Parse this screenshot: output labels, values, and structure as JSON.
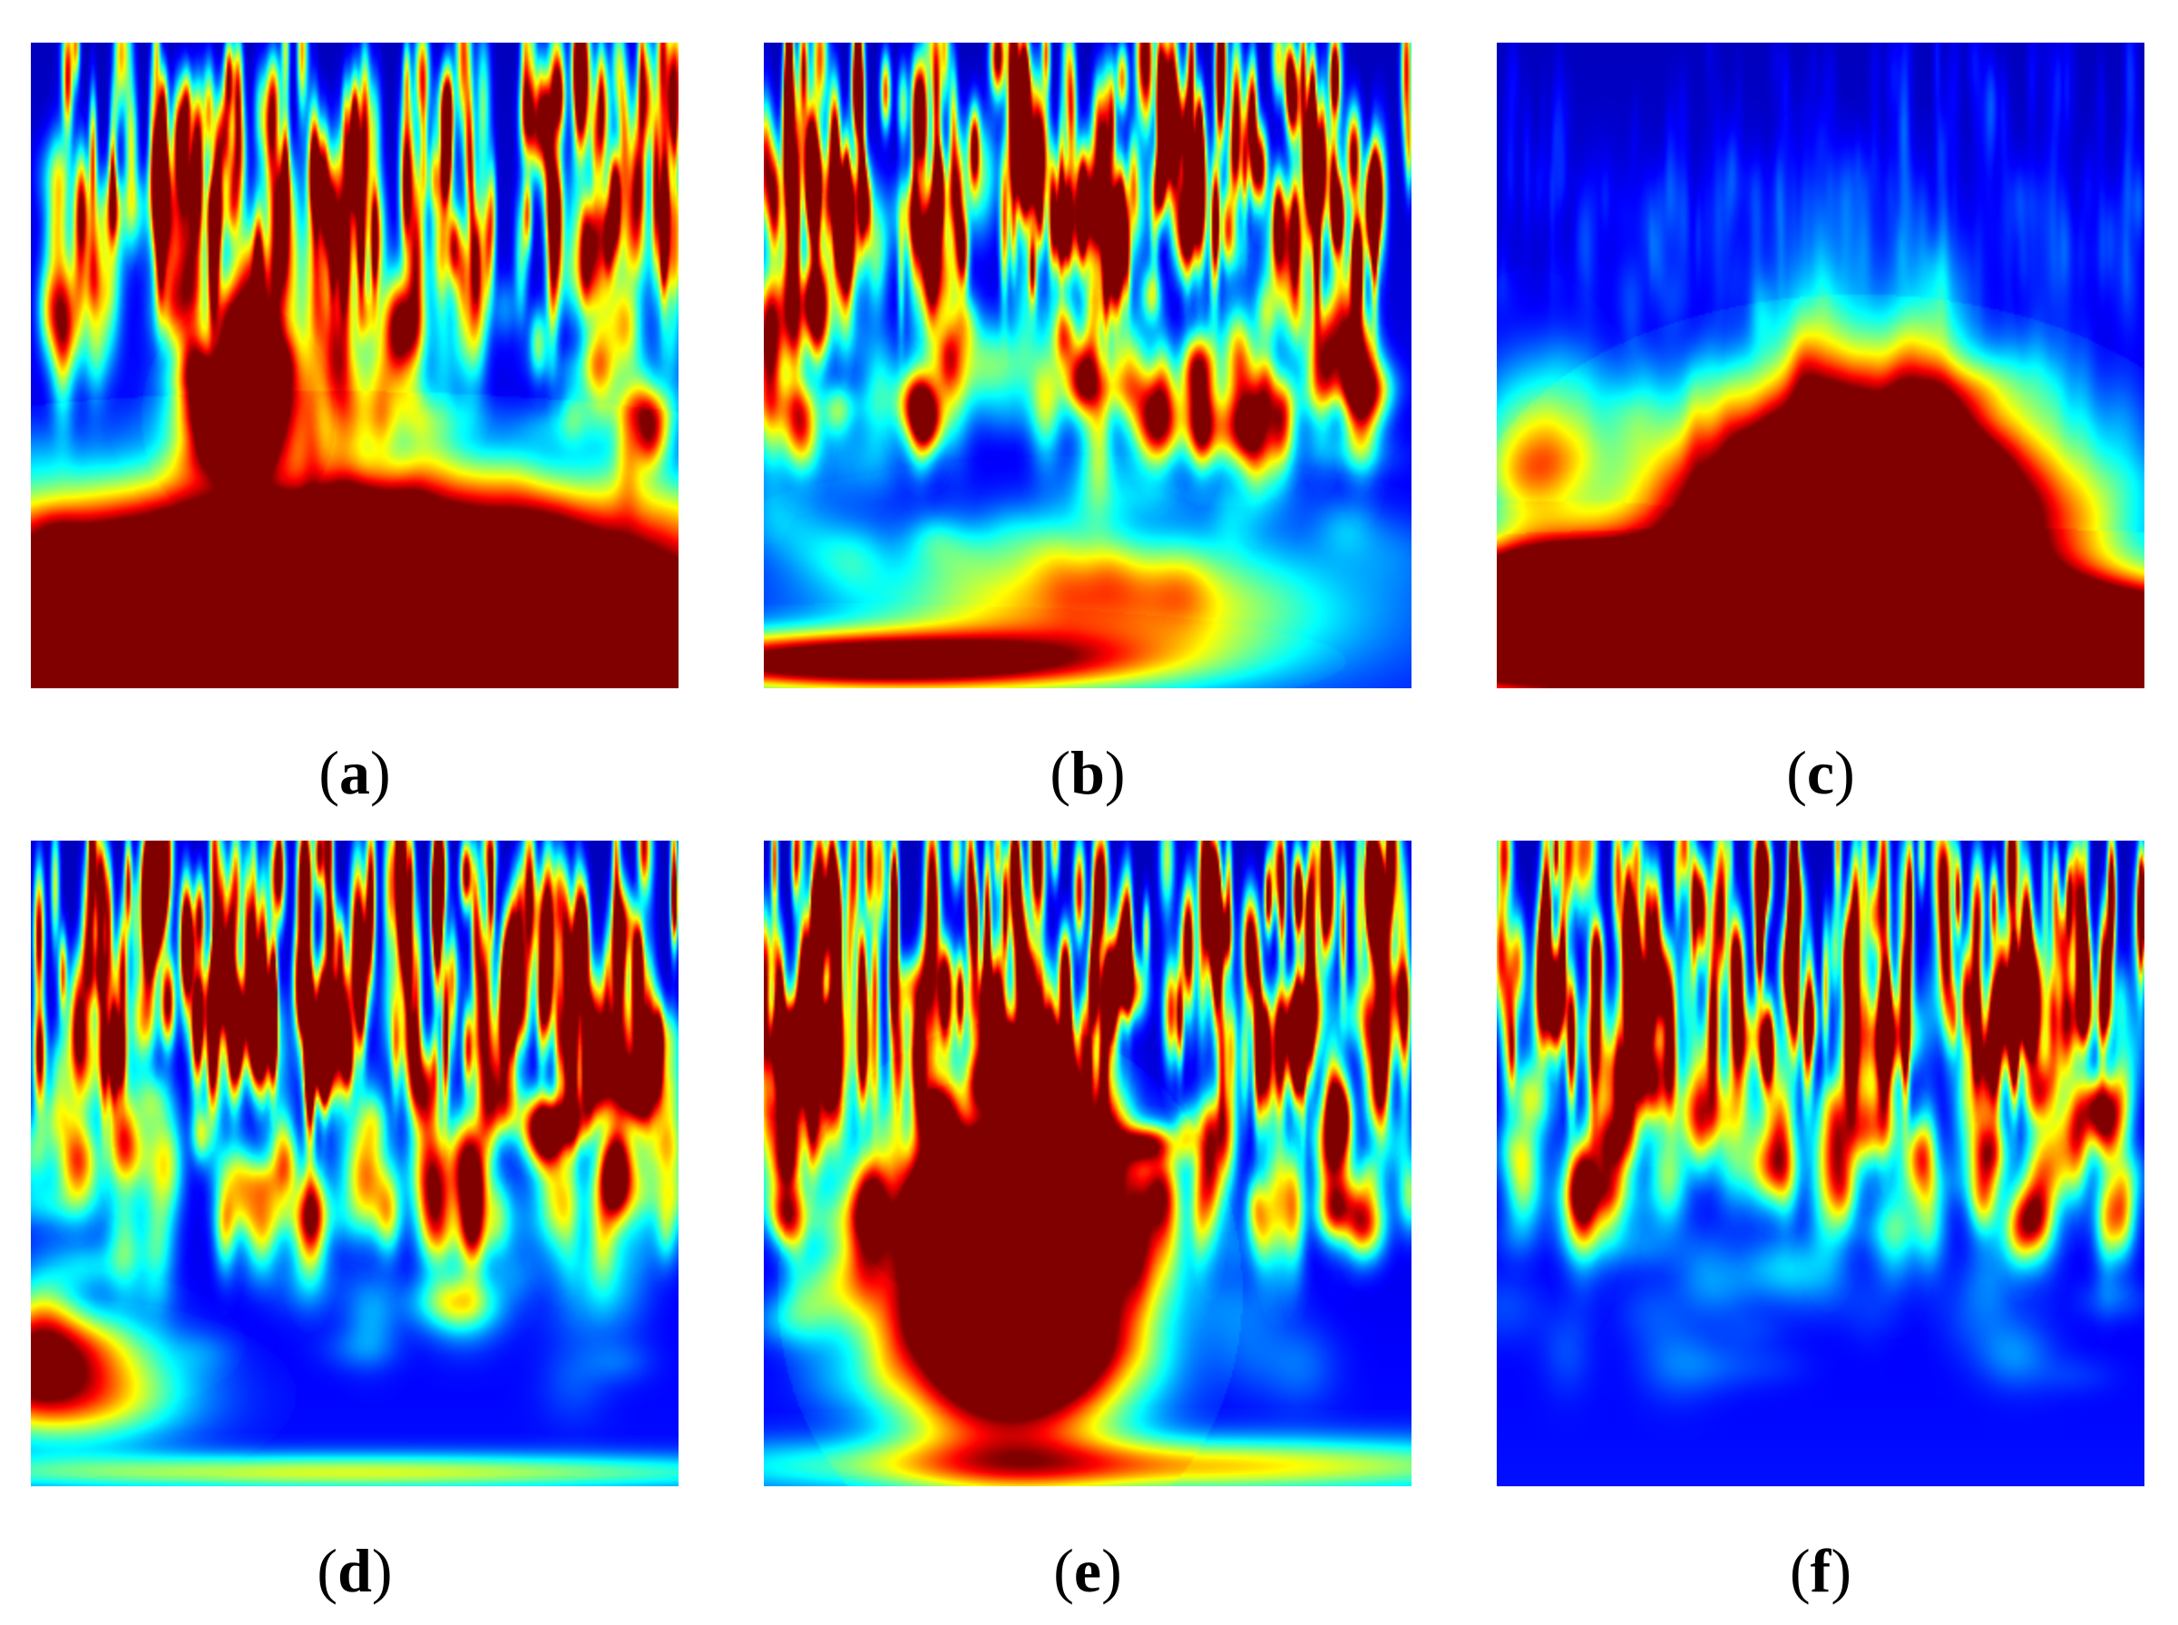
{
  "chart_data": [
    {
      "type": "heatmap",
      "label": "a",
      "seed": 11,
      "noise_top": 0.72,
      "noise_mid": 0.38,
      "noise_low": 0.12,
      "blobs": [
        {
          "cx": 0.46,
          "cy": 0.87,
          "rx": 0.42,
          "ry": 0.11,
          "amp": 2.4
        },
        {
          "cx": 0.32,
          "cy": 0.58,
          "rx": 0.05,
          "ry": 0.06,
          "amp": 1.4
        },
        {
          "cx": 0.4,
          "cy": 0.48,
          "rx": 0.1,
          "ry": 0.12,
          "amp": 0.45
        },
        {
          "cx": 0.5,
          "cy": 0.97,
          "rx": 0.5,
          "ry": 0.03,
          "amp": 0.9
        }
      ]
    },
    {
      "type": "heatmap",
      "label": "b",
      "seed": 23,
      "noise_top": 0.95,
      "noise_mid": 0.45,
      "noise_low": 0.12,
      "blobs": [
        {
          "cx": 0.52,
          "cy": 0.88,
          "rx": 0.25,
          "ry": 0.08,
          "amp": 0.62
        },
        {
          "cx": 0.15,
          "cy": 0.96,
          "rx": 0.25,
          "ry": 0.03,
          "amp": 1.1
        },
        {
          "cx": 0.72,
          "cy": 0.6,
          "rx": 0.05,
          "ry": 0.04,
          "amp": 0.55
        },
        {
          "cx": 0.35,
          "cy": 0.5,
          "rx": 0.06,
          "ry": 0.05,
          "amp": 0.4
        }
      ]
    },
    {
      "type": "heatmap",
      "label": "c",
      "seed": 37,
      "noise_top": 0.05,
      "noise_mid": 0.06,
      "noise_low": 0.08,
      "blobs": [
        {
          "cx": 0.56,
          "cy": 0.75,
          "rx": 0.2,
          "ry": 0.12,
          "amp": 2.4
        },
        {
          "cx": 0.55,
          "cy": 0.93,
          "rx": 0.5,
          "ry": 0.06,
          "amp": 2.5
        },
        {
          "cx": 0.12,
          "cy": 0.86,
          "rx": 0.14,
          "ry": 0.05,
          "amp": 2.0
        },
        {
          "cx": 0.5,
          "cy": 0.56,
          "rx": 0.05,
          "ry": 0.16,
          "amp": 0.45
        },
        {
          "cx": 0.66,
          "cy": 0.58,
          "rx": 0.05,
          "ry": 0.16,
          "amp": 0.45
        },
        {
          "cx": 0.05,
          "cy": 0.65,
          "rx": 0.06,
          "ry": 0.1,
          "amp": 0.5
        }
      ]
    },
    {
      "type": "heatmap",
      "label": "d",
      "seed": 51,
      "noise_top": 0.95,
      "noise_mid": 0.5,
      "noise_low": 0.15,
      "blobs": [
        {
          "cx": 0.05,
          "cy": 0.86,
          "rx": 0.12,
          "ry": 0.05,
          "amp": 0.7
        },
        {
          "cx": 0.03,
          "cy": 0.78,
          "rx": 0.1,
          "ry": 0.04,
          "amp": 0.55
        },
        {
          "cx": 0.81,
          "cy": 0.44,
          "rx": 0.03,
          "ry": 0.03,
          "amp": 0.7
        },
        {
          "cx": 0.5,
          "cy": 0.98,
          "rx": 0.5,
          "ry": 0.02,
          "amp": 0.45
        }
      ]
    },
    {
      "type": "heatmap",
      "label": "e",
      "seed": 67,
      "noise_top": 1.0,
      "noise_mid": 0.55,
      "noise_low": 0.12,
      "blobs": [
        {
          "cx": 0.38,
          "cy": 0.7,
          "rx": 0.12,
          "ry": 0.14,
          "amp": 2.3
        },
        {
          "cx": 0.34,
          "cy": 0.55,
          "rx": 0.07,
          "ry": 0.06,
          "amp": 1.7
        },
        {
          "cx": 0.4,
          "cy": 0.35,
          "rx": 0.04,
          "ry": 0.06,
          "amp": 1.2
        },
        {
          "cx": 0.45,
          "cy": 0.37,
          "rx": 0.03,
          "ry": 0.05,
          "amp": 0.9
        },
        {
          "cx": 0.04,
          "cy": 0.32,
          "rx": 0.03,
          "ry": 0.04,
          "amp": 1.2
        },
        {
          "cx": 0.6,
          "cy": 0.97,
          "rx": 0.45,
          "ry": 0.03,
          "amp": 0.55
        },
        {
          "cx": 0.59,
          "cy": 0.47,
          "rx": 0.03,
          "ry": 0.02,
          "amp": 0.7
        }
      ]
    },
    {
      "type": "heatmap",
      "label": "f",
      "seed": 83,
      "noise_top": 0.9,
      "noise_mid": 0.4,
      "noise_low": 0.1,
      "blobs": [
        {
          "cx": 0.56,
          "cy": 0.45,
          "rx": 0.04,
          "ry": 0.04,
          "amp": 0.5
        },
        {
          "cx": 0.32,
          "cy": 0.42,
          "rx": 0.04,
          "ry": 0.04,
          "amp": 0.45
        }
      ]
    }
  ],
  "captions": {
    "a": {
      "open": "(",
      "letter": "a",
      "close": ")"
    },
    "b": {
      "open": "(",
      "letter": "b",
      "close": ")"
    },
    "c": {
      "open": "(",
      "letter": "c",
      "close": ")"
    },
    "d": {
      "open": "(",
      "letter": "d",
      "close": ")"
    },
    "e": {
      "open": "(",
      "letter": "e",
      "close": ")"
    },
    "f": {
      "open": "(",
      "letter": "f",
      "close": ")"
    }
  },
  "colors": {
    "background": "#ffffff",
    "colormap": "jet"
  }
}
